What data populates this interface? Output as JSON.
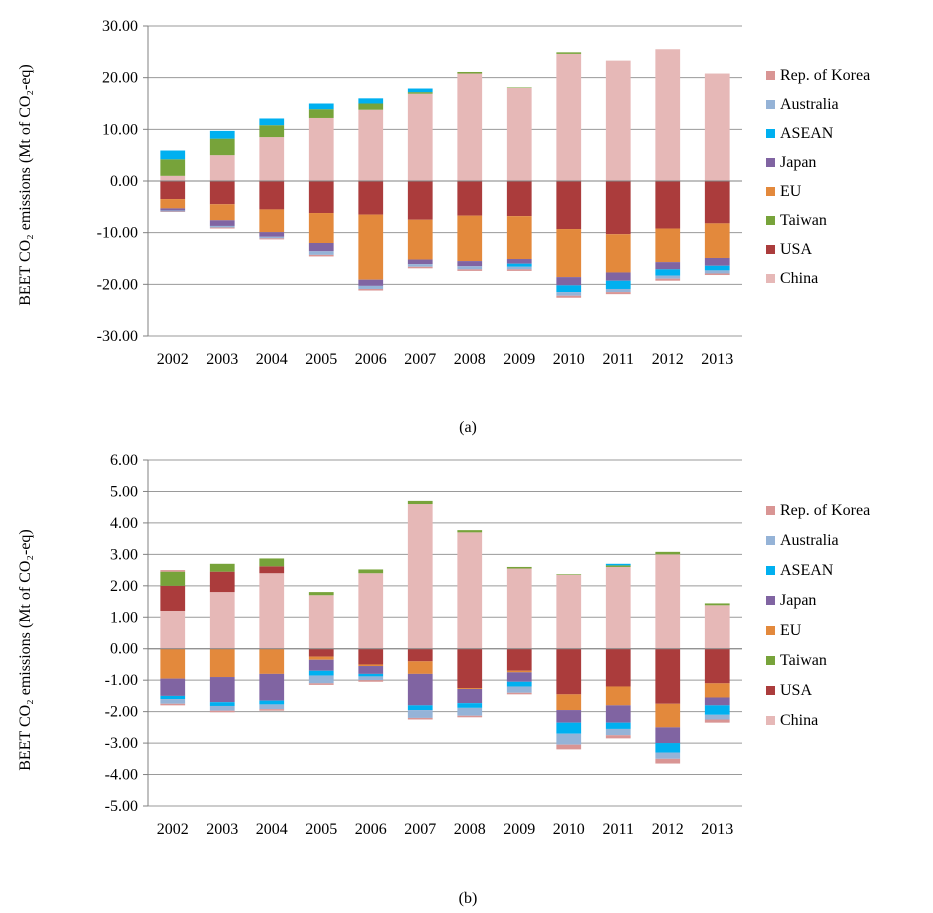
{
  "colors": {
    "Rep. of Korea": "#d99594",
    "Australia": "#95b3d7",
    "ASEAN": "#00b0f0",
    "Japan": "#8064a2",
    "EU": "#e3893c",
    "Taiwan": "#77a33a",
    "USA": "#ab3c3c",
    "China": "#e6b8b7"
  },
  "chart_data": [
    {
      "type": "bar",
      "stacked": true,
      "caption": "(a)",
      "ylabel": "BEET CO₂ emissions (Mt of CO₂-eq)",
      "ylim": [
        -30,
        30
      ],
      "yticks": [
        "30.00",
        "20.00",
        "10.00",
        "0.00",
        "-10.00",
        "-20.00",
        "-30.00"
      ],
      "ytick_values": [
        30,
        20,
        10,
        0,
        -10,
        -20,
        -30
      ],
      "grid": true,
      "legend": [
        "Rep. of Korea",
        "Australia",
        "ASEAN",
        "Japan",
        "EU",
        "Taiwan",
        "USA",
        "China"
      ],
      "legend_position": "right",
      "categories": [
        "2002",
        "2003",
        "2004",
        "2005",
        "2006",
        "2007",
        "2008",
        "2009",
        "2010",
        "2011",
        "2012",
        "2013"
      ],
      "series": [
        {
          "name": "China",
          "values": [
            1.0,
            5.0,
            8.5,
            12.2,
            13.8,
            16.9,
            20.8,
            18.0,
            24.6,
            23.3,
            25.5,
            20.8
          ]
        },
        {
          "name": "USA",
          "values": [
            -3.5,
            -4.5,
            -5.5,
            -6.2,
            -6.5,
            -7.5,
            -6.7,
            -6.8,
            -9.3,
            -10.3,
            -9.2,
            -8.2
          ]
        },
        {
          "name": "Taiwan",
          "values": [
            3.2,
            3.2,
            2.3,
            1.7,
            1.2,
            0.3,
            0.3,
            0.1,
            0.3,
            0.0,
            0.0,
            0.0
          ]
        },
        {
          "name": "EU",
          "values": [
            -1.8,
            -3.1,
            -4.4,
            -5.8,
            -12.6,
            -7.7,
            -8.8,
            -8.3,
            -9.3,
            -7.4,
            -6.5,
            -6.7
          ]
        },
        {
          "name": "Japan",
          "values": [
            -0.4,
            -1.1,
            -0.9,
            -1.6,
            -1.2,
            -0.9,
            -1.0,
            -0.9,
            -1.6,
            -1.6,
            -1.4,
            -1.5
          ]
        },
        {
          "name": "ASEAN",
          "values": [
            1.7,
            1.5,
            1.3,
            1.1,
            1.0,
            0.7,
            0.0,
            0.0,
            0.0,
            0.0,
            0.0,
            0.0
          ]
        },
        {
          "name": "ASEAN",
          "negative": true,
          "values": [
            0.0,
            0.0,
            0.0,
            0.0,
            0.0,
            0.0,
            0.0,
            -0.6,
            -1.3,
            -1.6,
            -1.2,
            -0.9
          ]
        },
        {
          "name": "Australia",
          "values": [
            -0.2,
            -0.3,
            -0.3,
            -0.7,
            -0.6,
            -0.5,
            -0.6,
            -0.5,
            -0.7,
            -0.6,
            -0.6,
            -0.6
          ]
        },
        {
          "name": "Rep. of Korea",
          "values": [
            -0.1,
            -0.2,
            -0.2,
            -0.3,
            -0.3,
            -0.3,
            -0.3,
            -0.3,
            -0.4,
            -0.4,
            -0.4,
            -0.3
          ]
        }
      ]
    },
    {
      "type": "bar",
      "stacked": true,
      "caption": "(b)",
      "ylabel": "BEET CO₂ emissions (Mt of CO₂-eq)",
      "ylim": [
        -5,
        6
      ],
      "yticks": [
        "6.00",
        "5.00",
        "4.00",
        "3.00",
        "2.00",
        "1.00",
        "0.00",
        "-1.00",
        "-2.00",
        "-3.00",
        "-4.00",
        "-5.00"
      ],
      "ytick_values": [
        6,
        5,
        4,
        3,
        2,
        1,
        0,
        -1,
        -2,
        -3,
        -4,
        -5
      ],
      "grid": true,
      "legend": [
        "Rep. of Korea",
        "Australia",
        "ASEAN",
        "Japan",
        "EU",
        "Taiwan",
        "USA",
        "China"
      ],
      "legend_position": "right",
      "categories": [
        "2002",
        "2003",
        "2004",
        "2005",
        "2006",
        "2007",
        "2008",
        "2009",
        "2010",
        "2011",
        "2012",
        "2013"
      ],
      "series": [
        {
          "name": "China",
          "values": [
            1.2,
            1.8,
            2.4,
            1.7,
            2.4,
            4.6,
            3.7,
            2.55,
            2.35,
            2.6,
            3.0,
            1.38
          ]
        },
        {
          "name": "USA",
          "values": [
            0.8,
            0.65,
            0.22,
            0.0,
            0.0,
            0.0,
            0.0,
            0.0,
            0.0,
            0.0,
            0.0,
            0.0
          ]
        },
        {
          "name": "USA",
          "negative": true,
          "values": [
            0.0,
            0.0,
            0.0,
            -0.25,
            -0.5,
            -0.4,
            -1.25,
            -0.7,
            -1.45,
            -1.2,
            -1.75,
            -1.1
          ]
        },
        {
          "name": "Taiwan",
          "values": [
            0.45,
            0.25,
            0.25,
            0.1,
            0.12,
            0.1,
            0.07,
            0.05,
            0.02,
            0.05,
            0.08,
            0.06
          ]
        },
        {
          "name": "EU",
          "values": [
            -0.95,
            -0.9,
            -0.8,
            -0.1,
            -0.05,
            -0.4,
            -0.03,
            -0.05,
            -0.5,
            -0.6,
            -0.75,
            -0.45
          ]
        },
        {
          "name": "Japan",
          "values": [
            -0.55,
            -0.8,
            -0.85,
            -0.35,
            -0.25,
            -1.0,
            -0.45,
            -0.3,
            -0.4,
            -0.55,
            -0.5,
            -0.25
          ]
        },
        {
          "name": "ASEAN",
          "values": [
            -0.1,
            -0.12,
            -0.12,
            -0.15,
            -0.08,
            -0.15,
            -0.15,
            -0.15,
            -0.35,
            -0.2,
            -0.3,
            -0.3
          ]
        },
        {
          "name": "ASEAN",
          "positive": true,
          "values": [
            0.0,
            0.0,
            0.0,
            0.0,
            0.0,
            0.0,
            0.0,
            0.0,
            0.0,
            0.05,
            0.0,
            0.0
          ]
        },
        {
          "name": "Australia",
          "values": [
            -0.15,
            -0.15,
            -0.15,
            -0.25,
            -0.12,
            -0.25,
            -0.25,
            -0.2,
            -0.35,
            -0.2,
            -0.2,
            -0.15
          ]
        },
        {
          "name": "Rep. of Korea",
          "values": [
            -0.05,
            -0.05,
            -0.05,
            -0.05,
            -0.05,
            -0.05,
            -0.05,
            -0.05,
            -0.15,
            -0.1,
            -0.15,
            -0.1
          ]
        },
        {
          "name": "Rep. of Korea",
          "positive": true,
          "values": [
            0.05,
            0.0,
            0.0,
            0.0,
            0.0,
            0.0,
            0.0,
            0.0,
            0.0,
            0.0,
            0.0,
            0.0
          ]
        }
      ]
    }
  ]
}
